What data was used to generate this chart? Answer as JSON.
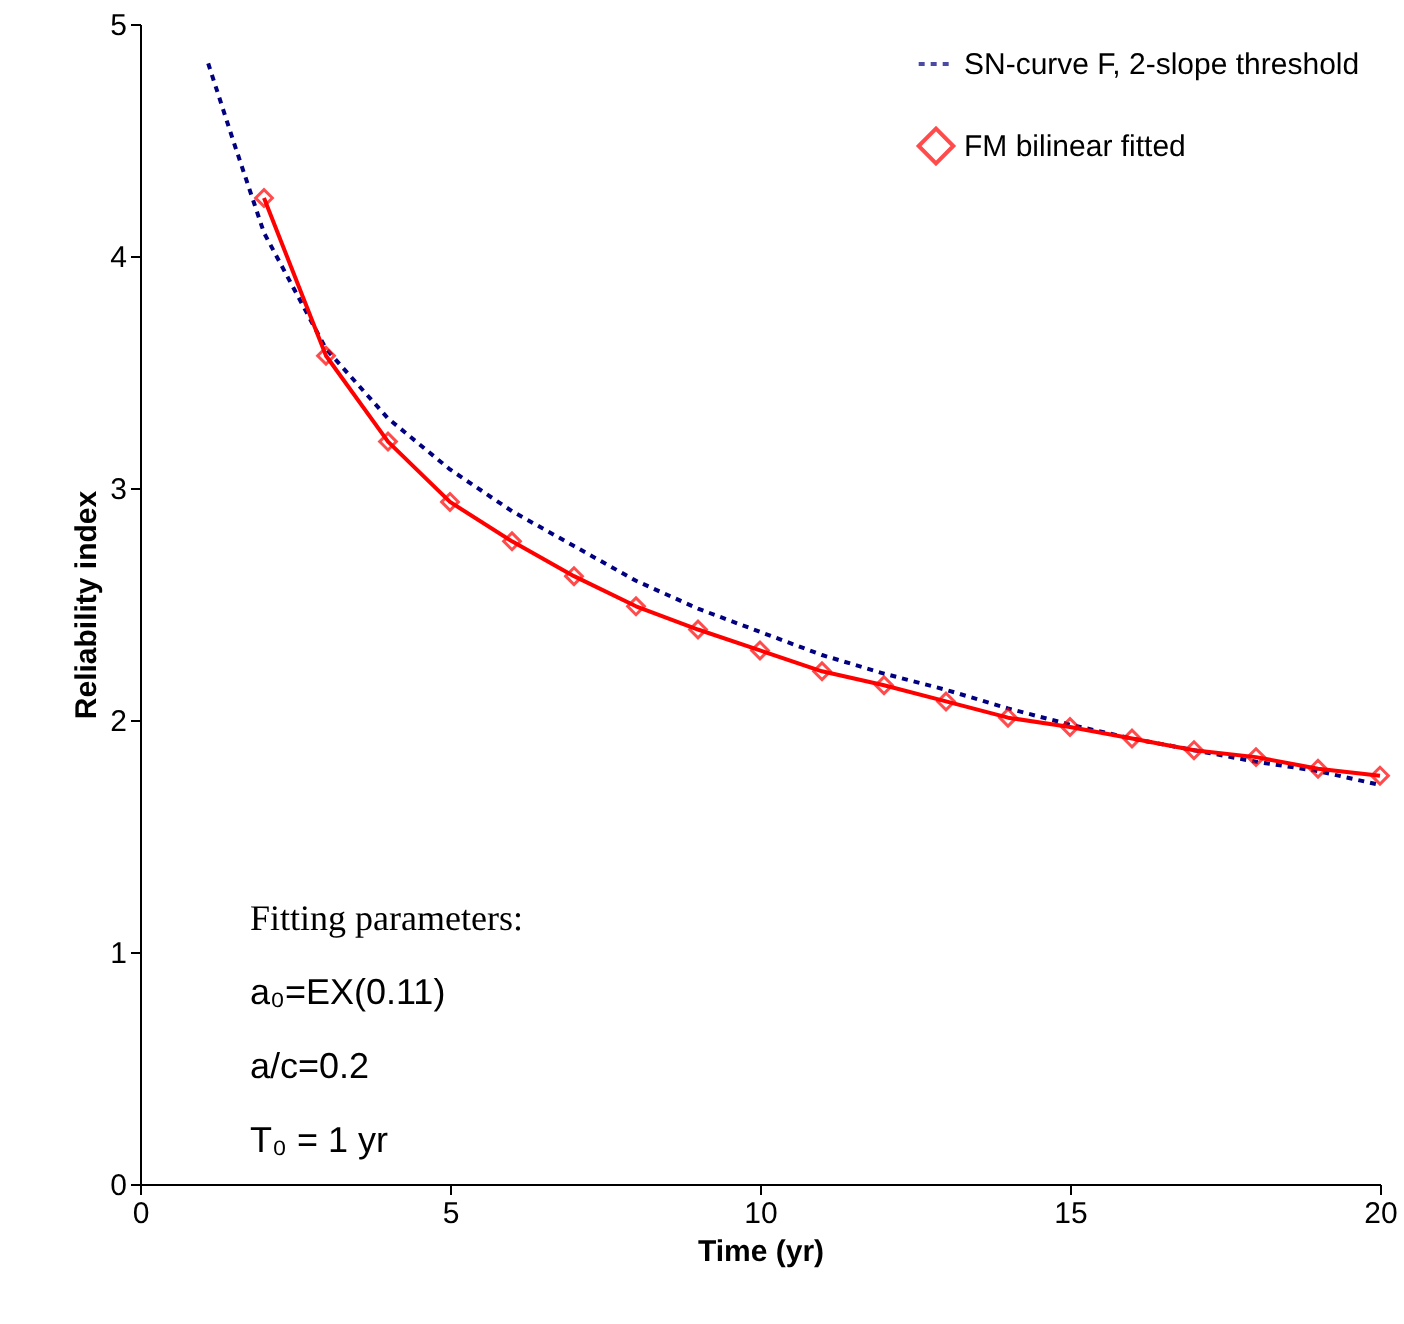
{
  "chart_data": {
    "type": "line",
    "xlabel": "Time (yr)",
    "ylabel": "Reliability index",
    "xlim": [
      0,
      20
    ],
    "ylim": [
      0,
      5
    ],
    "xticks": [
      0,
      5,
      10,
      15,
      20
    ],
    "yticks": [
      {
        "value": 0,
        "label": "0"
      },
      {
        "value": 1,
        "label": "1"
      },
      {
        "value": 2,
        "label": "2"
      },
      {
        "value": 3,
        "label": "3"
      },
      {
        "value": 4,
        "label": "4"
      },
      {
        "value": 5,
        "label": "5"
      }
    ],
    "grid": false,
    "legend": "top right",
    "series": [
      {
        "name": "SN-curve F, 2-slope threshold",
        "color": "#000080",
        "line_style": "dotted",
        "marker": "none",
        "x": [
          1.1,
          1.5,
          2,
          3,
          4,
          5,
          6,
          7,
          8,
          9,
          10,
          11,
          12,
          13,
          14,
          15,
          16,
          17,
          18,
          19,
          20
        ],
        "values": [
          4.83,
          4.5,
          4.1,
          3.6,
          3.3,
          3.08,
          2.9,
          2.75,
          2.6,
          2.48,
          2.38,
          2.28,
          2.2,
          2.13,
          2.05,
          1.98,
          1.92,
          1.87,
          1.82,
          1.78,
          1.72
        ]
      },
      {
        "name": "FM bilinear fitted",
        "color": "#ff0000",
        "line_style": "solid",
        "marker": "diamond",
        "x": [
          2,
          3,
          4,
          5,
          6,
          7,
          8,
          9,
          10,
          11,
          12,
          13,
          14,
          15,
          16,
          17,
          18,
          19,
          20
        ],
        "values": [
          4.25,
          3.57,
          3.2,
          2.94,
          2.77,
          2.62,
          2.49,
          2.39,
          2.3,
          2.21,
          2.15,
          2.08,
          2.01,
          1.97,
          1.92,
          1.87,
          1.84,
          1.79,
          1.76
        ]
      }
    ],
    "annotations": [
      "Fitting parameters:",
      "a₀=EX(0.11)",
      "a/c=0.2",
      "T₀ = 1 yr"
    ]
  }
}
